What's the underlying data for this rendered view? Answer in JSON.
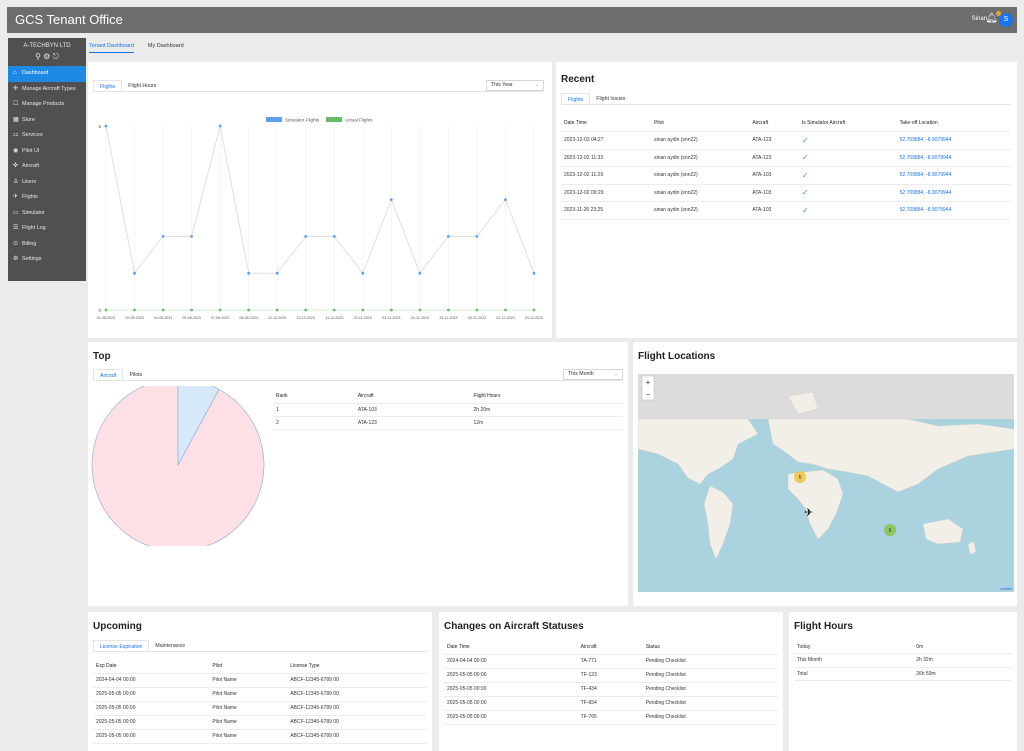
{
  "app": {
    "title": "GCS Tenant Office",
    "user": "Sinan",
    "avatar_letter": "S"
  },
  "sidebar": {
    "company": "A-TECHBYN LTD",
    "items": [
      {
        "label": "Dashboard",
        "icon": "dashboard-icon",
        "active": true
      },
      {
        "label": "Manage Aircraft Types",
        "icon": "aircraft-types-icon"
      },
      {
        "label": "Manage Products",
        "icon": "products-icon"
      },
      {
        "label": "Store",
        "icon": "store-icon"
      },
      {
        "label": "Services",
        "icon": "services-icon"
      },
      {
        "label": "Pilot UI",
        "icon": "eye-icon"
      },
      {
        "label": "Aircraft",
        "icon": "drone-icon"
      },
      {
        "label": "Users",
        "icon": "users-icon"
      },
      {
        "label": "Flights",
        "icon": "plane-icon"
      },
      {
        "label": "Simulator",
        "icon": "simulator-icon"
      },
      {
        "label": "Flight Log",
        "icon": "log-icon"
      },
      {
        "label": "Billing",
        "icon": "billing-icon"
      },
      {
        "label": "Settings",
        "icon": "settings-icon"
      }
    ]
  },
  "top_tabs": [
    "Tenant Dashboard",
    "My Dashboard"
  ],
  "flights_card": {
    "tabs": [
      "Flights",
      "Flight Hours"
    ],
    "period": "This Year",
    "chart_data": {
      "type": "line",
      "x": [
        "01-08-2023",
        "02-08-2023",
        "04-08-2023",
        "05-08-2023",
        "07-08-2023",
        "08-08-2023",
        "12-10-2023",
        "23-10-2023",
        "14-11-2023",
        "22-11-2023",
        "23-11-2023",
        "24-11-2023",
        "25-11-2023",
        "26-11-2023",
        "02-12-2023",
        "03-12-2023"
      ],
      "series": [
        {
          "name": "Simulator Flights",
          "color": "#5da0e8",
          "values": [
            5,
            1,
            2,
            2,
            5,
            1,
            1,
            2,
            2,
            1,
            3,
            1,
            2,
            2,
            3,
            1
          ]
        },
        {
          "name": "Actual Flights",
          "color": "#66bb6a",
          "values": [
            0,
            0,
            0,
            0,
            0,
            0,
            0,
            0,
            0,
            0,
            0,
            0,
            0,
            0,
            0,
            0
          ]
        }
      ],
      "yticks": [
        "5",
        "0"
      ],
      "ylim": [
        0,
        5
      ],
      "legend": "top"
    }
  },
  "recent": {
    "title": "Recent",
    "tabs": [
      "Flights",
      "Flight Issues"
    ],
    "columns": [
      "Date Time",
      "Pilot",
      "Aircraft",
      "Is Simulator Aircraft",
      "Take-off Location"
    ],
    "rows": [
      [
        "2023-12-03 04:27",
        "sinan aydin (snn22)",
        "ATA-123",
        "✓",
        "52.709884, -8.9079944"
      ],
      [
        "2023-12-02 11:33",
        "sinan aydin (snn22)",
        "ATA-123",
        "✓",
        "52.709884, -8.9079944"
      ],
      [
        "2023-12-02 11:29",
        "sinan aydin (snn22)",
        "ATA-103",
        "✓",
        "52.709884, -8.9079944"
      ],
      [
        "2023-12-02 09:29",
        "sinan aydin (snn22)",
        "ATA-103",
        "✓",
        "52.709884, -8.9079944"
      ],
      [
        "2023-11-26 23:25",
        "sinan aydin (snn22)",
        "ATA-103",
        "✓",
        "52.709884, -8.9079944"
      ]
    ]
  },
  "top": {
    "title": "Top",
    "tabs": [
      "Aircraft",
      "Pilots"
    ],
    "period": "This Month",
    "columns": [
      "Rank",
      "Aircraft",
      "Flight Hours"
    ],
    "rows": [
      [
        "1",
        "ATA-103",
        "2h 20m"
      ],
      [
        "2",
        "ATA-123",
        "12m"
      ]
    ],
    "chart_data": {
      "type": "pie",
      "categories": [
        "ATA-103",
        "ATA-123"
      ],
      "values": [
        140,
        12
      ],
      "colors": [
        "#fde0e6",
        "#d6e9f8"
      ]
    }
  },
  "map": {
    "title": "Flight Locations",
    "zoom_in": "+",
    "zoom_out": "−",
    "cluster_a": "5",
    "cluster_b": "6",
    "attribution": "Leaflet"
  },
  "upcoming": {
    "title": "Upcoming",
    "tabs": [
      "License Expiration",
      "Maintenance"
    ],
    "columns": [
      "Exp Date",
      "Pilot",
      "License Type"
    ],
    "rows": [
      [
        "2024-04-04 00:00",
        "Pilot Name",
        "ABCF-12345-6789 00"
      ],
      [
        "2025-05-05 00:00",
        "Pilot Name",
        "ABCF-12345-6789 00"
      ],
      [
        "2025-05-05 00:00",
        "Pilot Name",
        "ABCF-12345-6789 00"
      ],
      [
        "2025-05-05 00:00",
        "Pilot Name",
        "ABCF-12345-6789 00"
      ],
      [
        "2025-05-05 00:00",
        "Pilot Name",
        "ABCF-12345-6789 00"
      ]
    ]
  },
  "changes": {
    "title": "Changes on Aircraft Statuses",
    "columns": [
      "Date Time",
      "Aircraft",
      "Status"
    ],
    "rows": [
      [
        "2024-04-04 00:00",
        "TA-771",
        "Pending Checklist"
      ],
      [
        "2025-05-05 00:00",
        "TF-123",
        "Pending Checklist"
      ],
      [
        "2025-05-05 00:00",
        "TF-434",
        "Pending Checklist"
      ],
      [
        "2025-05-05 00:00",
        "TF-654",
        "Pending Checklist"
      ],
      [
        "2025-05-05 00:00",
        "TF-765",
        "Pending Checklist"
      ]
    ]
  },
  "flight_hours": {
    "title": "Flight Hours",
    "rows": [
      [
        "Today",
        "0m"
      ],
      [
        "This Month",
        "2h 32m"
      ],
      [
        "Total",
        "26h 59m"
      ]
    ]
  }
}
